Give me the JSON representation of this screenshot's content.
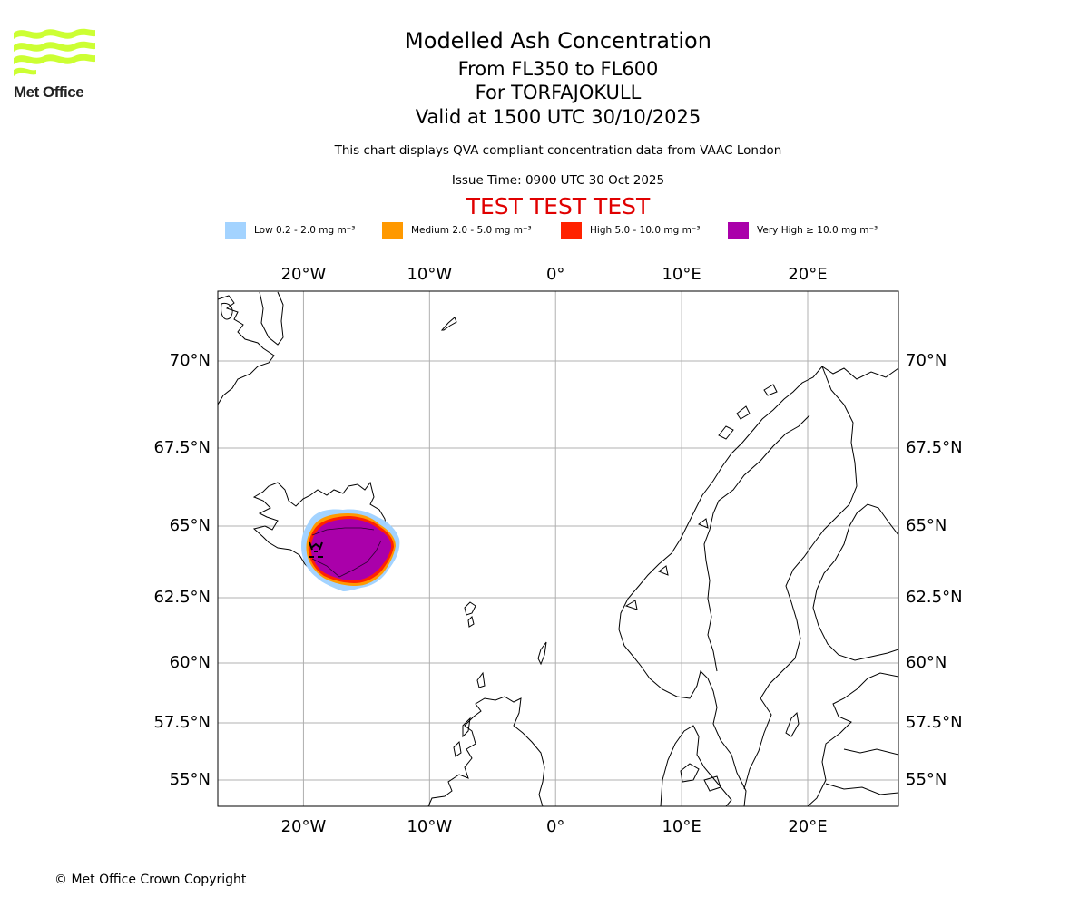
{
  "logo": {
    "name": "Met Office",
    "icon": "met-office-wave-logo-icon",
    "color": "#ccff33"
  },
  "title": {
    "line1": "Modelled Ash Concentration",
    "line2": "From FL350 to FL600",
    "line3": "For TORFAJOKULL",
    "line4": "Valid at 1500 UTC 30/10/2025"
  },
  "subtitle": "This chart displays QVA compliant concentration data from VAAC London",
  "issue_time": "Issue Time: 0900 UTC 30 Oct 2025",
  "test_banner": "TEST TEST TEST",
  "legend": [
    {
      "label": "Low 0.2 - 2.0 mg m⁻³",
      "color": "#a3d3ff"
    },
    {
      "label": "Medium 2.0 - 5.0 mg m⁻³",
      "color": "#ff9900"
    },
    {
      "label": "High 5.0 - 10.0 mg m⁻³",
      "color": "#ff2200"
    },
    {
      "label": "Very High ≥ 10.0 mg m⁻³",
      "color": "#aa00aa"
    }
  ],
  "map": {
    "lon_range": [
      -26.8,
      27.2
    ],
    "lat_range": [
      54.0,
      71.5
    ],
    "lon_ticks": [
      {
        "value": -20,
        "label": "20°W"
      },
      {
        "value": -10,
        "label": "10°W"
      },
      {
        "value": 0,
        "label": "0°"
      },
      {
        "value": 10,
        "label": "10°E"
      },
      {
        "value": 20,
        "label": "20°E"
      }
    ],
    "lat_ticks": [
      {
        "value": 70,
        "label": "70°N"
      },
      {
        "value": 67.5,
        "label": "67.5°N"
      },
      {
        "value": 65,
        "label": "65°N"
      },
      {
        "value": 62.5,
        "label": "62.5°N"
      },
      {
        "value": 60,
        "label": "60°N"
      },
      {
        "value": 57.5,
        "label": "57.5°N"
      },
      {
        "value": 55,
        "label": "55°N"
      }
    ],
    "volcano": {
      "name": "TORFAJOKULL",
      "lon": -19.1,
      "lat": 63.9,
      "icon": "volcano-marker-icon"
    }
  },
  "copyright": "© Met Office Crown Copyright"
}
